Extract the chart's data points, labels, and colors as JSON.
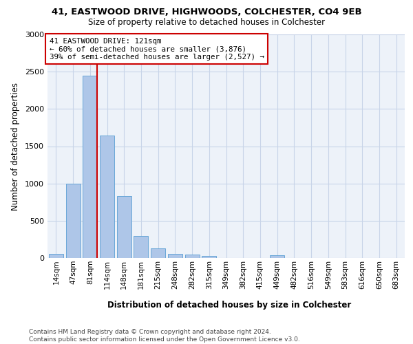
{
  "title_line1": "41, EASTWOOD DRIVE, HIGHWOODS, COLCHESTER, CO4 9EB",
  "title_line2": "Size of property relative to detached houses in Colchester",
  "xlabel": "Distribution of detached houses by size in Colchester",
  "ylabel": "Number of detached properties",
  "footnote": "Contains HM Land Registry data © Crown copyright and database right 2024.\nContains public sector information licensed under the Open Government Licence v3.0.",
  "bin_labels": [
    "14sqm",
    "47sqm",
    "81sqm",
    "114sqm",
    "148sqm",
    "181sqm",
    "215sqm",
    "248sqm",
    "282sqm",
    "315sqm",
    "349sqm",
    "382sqm",
    "415sqm",
    "449sqm",
    "482sqm",
    "516sqm",
    "549sqm",
    "583sqm",
    "616sqm",
    "650sqm",
    "683sqm"
  ],
  "bar_values": [
    60,
    1000,
    2450,
    1640,
    830,
    300,
    130,
    55,
    45,
    30,
    0,
    0,
    0,
    35,
    0,
    0,
    0,
    0,
    0,
    0,
    0
  ],
  "bar_color": "#aec6e8",
  "bar_edgecolor": "#5a9fd4",
  "property_bar_index": 2,
  "annotation_text": "41 EASTWOOD DRIVE: 121sqm\n← 60% of detached houses are smaller (3,876)\n39% of semi-detached houses are larger (2,527) →",
  "annotation_box_facecolor": "#ffffff",
  "annotation_box_edgecolor": "#cc0000",
  "red_line_color": "#cc0000",
  "grid_color": "#c8d4e8",
  "background_color": "#edf2f9",
  "ylim_max": 3000,
  "yticks": [
    0,
    500,
    1000,
    1500,
    2000,
    2500,
    3000
  ]
}
